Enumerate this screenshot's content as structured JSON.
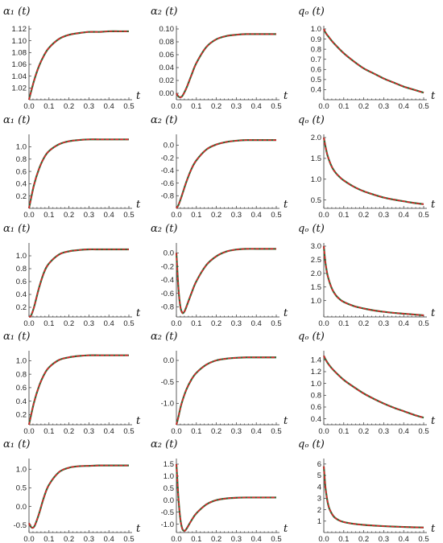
{
  "chart_data": [
    {
      "type": "line",
      "title": "α₁ (t)",
      "xlabel": "t",
      "xlim": [
        0,
        0.5
      ],
      "ylim": [
        1.0,
        1.12
      ],
      "xticks": [
        "0.0",
        "0.1",
        "0.2",
        "0.3",
        "0.4",
        "0.5"
      ],
      "yticks": [
        "1.02",
        "1.04",
        "1.06",
        "1.08",
        "1.10",
        "1.12"
      ],
      "x": [
        0,
        0.025,
        0.05,
        0.075,
        0.1,
        0.15,
        0.2,
        0.25,
        0.3,
        0.35,
        0.4,
        0.45,
        0.5
      ],
      "series": [
        {
          "values": [
            1.0,
            1.032,
            1.057,
            1.075,
            1.088,
            1.103,
            1.11,
            1.113,
            1.115,
            1.115,
            1.116,
            1.116,
            1.116
          ]
        }
      ]
    },
    {
      "type": "line",
      "title": "α₂ (t)",
      "xlabel": "t",
      "xlim": [
        0,
        0.5
      ],
      "ylim": [
        -0.01,
        0.1
      ],
      "xticks": [
        "0.0",
        "0.1",
        "0.2",
        "0.3",
        "0.4",
        "0.5"
      ],
      "yticks": [
        "0.00",
        "0.02",
        "0.04",
        "0.06",
        "0.08",
        "0.10"
      ],
      "x": [
        0,
        0.01,
        0.02,
        0.03,
        0.05,
        0.075,
        0.1,
        0.15,
        0.2,
        0.25,
        0.3,
        0.35,
        0.4,
        0.45,
        0.5
      ],
      "series": [
        {
          "values": [
            0.0,
            -0.005,
            -0.006,
            -0.004,
            0.008,
            0.028,
            0.047,
            0.072,
            0.084,
            0.089,
            0.091,
            0.092,
            0.092,
            0.092,
            0.092
          ]
        }
      ]
    },
    {
      "type": "line",
      "title": "qₒ (t)",
      "xlabel": "t",
      "xlim": [
        0,
        0.5
      ],
      "ylim": [
        0.3,
        1.0
      ],
      "xticks": [
        "0.0",
        "0.1",
        "0.2",
        "0.3",
        "0.4",
        "0.5"
      ],
      "yticks": [
        "0.4",
        "0.5",
        "0.6",
        "0.7",
        "0.8",
        "0.9",
        "1.0"
      ],
      "x": [
        0,
        0.01,
        0.025,
        0.05,
        0.1,
        0.15,
        0.2,
        0.25,
        0.3,
        0.35,
        0.4,
        0.45,
        0.5
      ],
      "series": [
        {
          "values": [
            1.0,
            0.96,
            0.92,
            0.86,
            0.76,
            0.68,
            0.61,
            0.56,
            0.51,
            0.47,
            0.43,
            0.4,
            0.37
          ]
        }
      ]
    },
    {
      "type": "line",
      "title": "α₁ (t)",
      "xlabel": "t",
      "xlim": [
        0,
        0.5
      ],
      "ylim": [
        0.0,
        1.15
      ],
      "xticks": [
        "0.0",
        "0.1",
        "0.2",
        "0.3",
        "0.4",
        "0.5"
      ],
      "yticks": [
        "0.2",
        "0.4",
        "0.6",
        "0.8",
        "1.0"
      ],
      "x": [
        0,
        0.025,
        0.05,
        0.075,
        0.1,
        0.15,
        0.2,
        0.25,
        0.3,
        0.35,
        0.4,
        0.45,
        0.5
      ],
      "series": [
        {
          "values": [
            0.0,
            0.38,
            0.64,
            0.82,
            0.93,
            1.04,
            1.09,
            1.11,
            1.12,
            1.12,
            1.12,
            1.12,
            1.12
          ]
        }
      ]
    },
    {
      "type": "line",
      "title": "α₂ (t)",
      "xlabel": "t",
      "xlim": [
        0,
        0.5
      ],
      "ylim": [
        -1.0,
        0.12
      ],
      "xticks": [
        "0.0",
        "0.1",
        "0.2",
        "0.3",
        "0.4",
        "0.5"
      ],
      "yticks": [
        "0.0",
        "-0.2",
        "-0.4",
        "-0.6",
        "-0.8"
      ],
      "x": [
        0,
        0.01,
        0.025,
        0.05,
        0.075,
        0.1,
        0.15,
        0.2,
        0.25,
        0.3,
        0.35,
        0.4,
        0.45,
        0.5
      ],
      "series": [
        {
          "values": [
            -1.0,
            -0.95,
            -0.82,
            -0.58,
            -0.38,
            -0.24,
            -0.07,
            0.01,
            0.05,
            0.07,
            0.08,
            0.08,
            0.08,
            0.08
          ]
        }
      ]
    },
    {
      "type": "line",
      "title": "qₒ (t)",
      "xlabel": "t",
      "xlim": [
        0,
        0.5
      ],
      "ylim": [
        0.3,
        2.0
      ],
      "xticks": [
        "0.0",
        "0.1",
        "0.2",
        "0.3",
        "0.4",
        "0.5"
      ],
      "yticks": [
        "0.5",
        "1.0",
        "1.5",
        "2.0"
      ],
      "x": [
        0,
        0.01,
        0.02,
        0.04,
        0.06,
        0.08,
        0.1,
        0.15,
        0.2,
        0.25,
        0.3,
        0.35,
        0.4,
        0.45,
        0.5
      ],
      "series": [
        {
          "values": [
            2.0,
            1.75,
            1.55,
            1.3,
            1.15,
            1.05,
            0.97,
            0.82,
            0.71,
            0.63,
            0.56,
            0.51,
            0.47,
            0.43,
            0.4
          ]
        }
      ]
    },
    {
      "type": "line",
      "title": "α₁ (t)",
      "xlabel": "t",
      "xlim": [
        0,
        0.5
      ],
      "ylim": [
        0.05,
        1.15
      ],
      "xticks": [
        "0.0",
        "0.1",
        "0.2",
        "0.3",
        "0.4",
        "0.5"
      ],
      "yticks": [
        "0.2",
        "0.4",
        "0.6",
        "0.8",
        "1.0"
      ],
      "x": [
        0,
        0.01,
        0.025,
        0.05,
        0.075,
        0.1,
        0.15,
        0.2,
        0.25,
        0.3,
        0.35,
        0.4,
        0.45,
        0.5
      ],
      "series": [
        {
          "values": [
            0.05,
            0.07,
            0.2,
            0.5,
            0.74,
            0.88,
            1.02,
            1.07,
            1.09,
            1.1,
            1.1,
            1.1,
            1.1,
            1.1
          ]
        }
      ]
    },
    {
      "type": "line",
      "title": "α₂ (t)",
      "xlabel": "t",
      "xlim": [
        0,
        0.5
      ],
      "ylim": [
        -0.95,
        0.1
      ],
      "xticks": [
        "0.0",
        "0.1",
        "0.2",
        "0.3",
        "0.4",
        "0.5"
      ],
      "yticks": [
        "0.0",
        "-0.2",
        "-0.4",
        "-0.6",
        "-0.8"
      ],
      "x": [
        0,
        0.01,
        0.02,
        0.03,
        0.04,
        0.05,
        0.075,
        0.1,
        0.15,
        0.2,
        0.25,
        0.3,
        0.35,
        0.4,
        0.45,
        0.5
      ],
      "series": [
        {
          "values": [
            0.0,
            -0.52,
            -0.8,
            -0.89,
            -0.87,
            -0.8,
            -0.6,
            -0.42,
            -0.18,
            -0.05,
            0.02,
            0.05,
            0.06,
            0.06,
            0.06,
            0.06
          ]
        }
      ]
    },
    {
      "type": "line",
      "title": "qₒ (t)",
      "xlabel": "t",
      "xlim": [
        0,
        0.5
      ],
      "ylim": [
        0.4,
        3.0
      ],
      "xticks": [
        "0.0",
        "0.1",
        "0.2",
        "0.3",
        "0.4",
        "0.5"
      ],
      "yticks": [
        "1.0",
        "1.5",
        "2.0",
        "2.5",
        "3.0"
      ],
      "x": [
        0,
        0.005,
        0.01,
        0.02,
        0.04,
        0.06,
        0.08,
        0.1,
        0.15,
        0.2,
        0.25,
        0.3,
        0.35,
        0.4,
        0.45,
        0.5
      ],
      "series": [
        {
          "values": [
            3.0,
            2.6,
            2.3,
            1.9,
            1.45,
            1.2,
            1.05,
            0.95,
            0.8,
            0.71,
            0.64,
            0.59,
            0.55,
            0.52,
            0.49,
            0.46
          ]
        }
      ]
    },
    {
      "type": "line",
      "title": "α₁ (t)",
      "xlabel": "t",
      "xlim": [
        0,
        0.5
      ],
      "ylim": [
        0.05,
        1.1
      ],
      "xticks": [
        "0.0",
        "0.1",
        "0.2",
        "0.3",
        "0.4",
        "0.5"
      ],
      "yticks": [
        "0.2",
        "0.4",
        "0.6",
        "0.8",
        "1.0"
      ],
      "x": [
        0,
        0.025,
        0.05,
        0.075,
        0.1,
        0.15,
        0.2,
        0.25,
        0.3,
        0.35,
        0.4,
        0.45,
        0.5
      ],
      "series": [
        {
          "values": [
            0.05,
            0.38,
            0.62,
            0.79,
            0.9,
            1.01,
            1.05,
            1.07,
            1.08,
            1.08,
            1.08,
            1.08,
            1.08
          ]
        }
      ]
    },
    {
      "type": "line",
      "title": "α₂ (t)",
      "xlabel": "t",
      "xlim": [
        0,
        0.5
      ],
      "ylim": [
        -1.5,
        0.15
      ],
      "xticks": [
        "0.0",
        "0.1",
        "0.2",
        "0.3",
        "0.4",
        "0.5"
      ],
      "yticks": [
        "0.0",
        "-0.5",
        "-1.0"
      ],
      "x": [
        0,
        0.01,
        0.025,
        0.05,
        0.075,
        0.1,
        0.15,
        0.2,
        0.25,
        0.3,
        0.35,
        0.4,
        0.45,
        0.5
      ],
      "series": [
        {
          "values": [
            -1.5,
            -1.32,
            -1.02,
            -0.68,
            -0.45,
            -0.29,
            -0.1,
            0.0,
            0.04,
            0.06,
            0.07,
            0.07,
            0.07,
            0.07
          ]
        }
      ]
    },
    {
      "type": "line",
      "title": "qₒ (t)",
      "xlabel": "t",
      "xlim": [
        0,
        0.5
      ],
      "ylim": [
        0.3,
        1.5
      ],
      "xticks": [
        "0.0",
        "0.1",
        "0.2",
        "0.3",
        "0.4",
        "0.5"
      ],
      "yticks": [
        "0.4",
        "0.6",
        "0.8",
        "1.0",
        "1.2",
        "1.4"
      ],
      "x": [
        0,
        0.01,
        0.025,
        0.05,
        0.1,
        0.15,
        0.2,
        0.25,
        0.3,
        0.35,
        0.4,
        0.45,
        0.5
      ],
      "series": [
        {
          "values": [
            1.47,
            1.4,
            1.32,
            1.22,
            1.06,
            0.94,
            0.83,
            0.74,
            0.66,
            0.59,
            0.53,
            0.47,
            0.42
          ]
        }
      ]
    },
    {
      "type": "line",
      "title": "α₁ (t)",
      "xlabel": "t",
      "xlim": [
        0,
        0.5
      ],
      "ylim": [
        -0.7,
        1.2
      ],
      "xticks": [
        "0.0",
        "0.1",
        "0.2",
        "0.3",
        "0.4",
        "0.5"
      ],
      "yticks": [
        "-0.5",
        "0.0",
        "0.5",
        "1.0"
      ],
      "x": [
        0,
        0.01,
        0.02,
        0.03,
        0.05,
        0.075,
        0.1,
        0.15,
        0.2,
        0.25,
        0.3,
        0.35,
        0.4,
        0.45,
        0.5
      ],
      "series": [
        {
          "values": [
            -0.45,
            -0.55,
            -0.57,
            -0.5,
            -0.2,
            0.25,
            0.58,
            0.92,
            1.04,
            1.08,
            1.09,
            1.1,
            1.1,
            1.1,
            1.1
          ]
        }
      ]
    },
    {
      "type": "line",
      "title": "α₂ (t)",
      "xlabel": "t",
      "xlim": [
        0,
        0.5
      ],
      "ylim": [
        -1.35,
        1.6
      ],
      "xticks": [
        "0.0",
        "0.1",
        "0.2",
        "0.3",
        "0.4",
        "0.5"
      ],
      "yticks": [
        "1.5",
        "1.0",
        "0.5",
        "0.0",
        "-0.5",
        "-1.0"
      ],
      "x": [
        0,
        0.005,
        0.01,
        0.02,
        0.03,
        0.04,
        0.05,
        0.075,
        0.1,
        0.15,
        0.2,
        0.25,
        0.3,
        0.35,
        0.4,
        0.45,
        0.5
      ],
      "series": [
        {
          "values": [
            1.5,
            0.8,
            0.1,
            -0.8,
            -1.2,
            -1.28,
            -1.2,
            -0.85,
            -0.55,
            -0.18,
            0.0,
            0.07,
            0.1,
            0.11,
            0.11,
            0.11,
            0.11
          ]
        }
      ]
    },
    {
      "type": "line",
      "title": "qₒ (t)",
      "xlabel": "t",
      "xlim": [
        0,
        0.5
      ],
      "ylim": [
        0,
        6.2
      ],
      "xticks": [
        "0.0",
        "0.1",
        "0.2",
        "0.3",
        "0.4",
        "0.5"
      ],
      "yticks": [
        "1",
        "2",
        "3",
        "4",
        "5",
        "6"
      ],
      "x": [
        0,
        0.005,
        0.01,
        0.02,
        0.03,
        0.05,
        0.075,
        0.1,
        0.15,
        0.2,
        0.25,
        0.3,
        0.35,
        0.4,
        0.45,
        0.5
      ],
      "series": [
        {
          "values": [
            5.8,
            4.6,
            3.7,
            2.6,
            2.0,
            1.4,
            1.08,
            0.92,
            0.76,
            0.67,
            0.61,
            0.56,
            0.52,
            0.49,
            0.46,
            0.44
          ]
        }
      ]
    }
  ],
  "colors": {
    "curve_under": "#2e6b34",
    "curve_over": "#e0242b",
    "axis": "#333333"
  }
}
